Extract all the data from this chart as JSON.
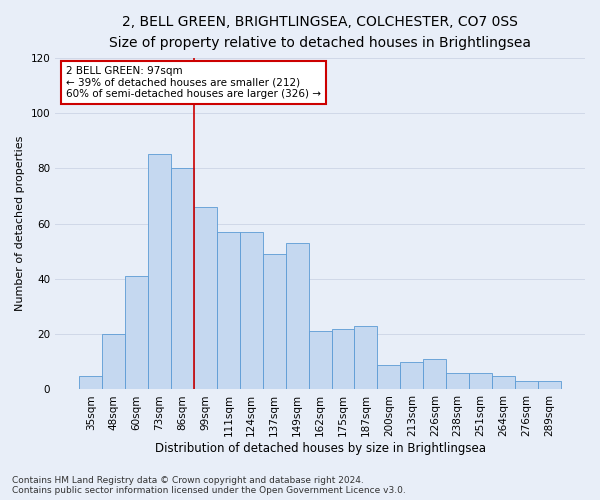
{
  "title1": "2, BELL GREEN, BRIGHTLINGSEA, COLCHESTER, CO7 0SS",
  "title2": "Size of property relative to detached houses in Brightlingsea",
  "xlabel": "Distribution of detached houses by size in Brightlingsea",
  "ylabel": "Number of detached properties",
  "footnote": "Contains HM Land Registry data © Crown copyright and database right 2024.\nContains public sector information licensed under the Open Government Licence v3.0.",
  "bar_labels": [
    "35sqm",
    "48sqm",
    "60sqm",
    "73sqm",
    "86sqm",
    "99sqm",
    "111sqm",
    "124sqm",
    "137sqm",
    "149sqm",
    "162sqm",
    "175sqm",
    "187sqm",
    "200sqm",
    "213sqm",
    "226sqm",
    "238sqm",
    "251sqm",
    "264sqm",
    "276sqm",
    "289sqm"
  ],
  "bar_values": [
    5,
    20,
    41,
    85,
    80,
    66,
    57,
    57,
    49,
    53,
    21,
    22,
    23,
    9,
    10,
    11,
    6,
    6,
    5,
    3,
    3
  ],
  "bar_color": "#c5d8f0",
  "bar_edge_color": "#5b9bd5",
  "annotation_text": "2 BELL GREEN: 97sqm\n← 39% of detached houses are smaller (212)\n60% of semi-detached houses are larger (326) →",
  "vline_color": "#cc0000",
  "vline_pos": 4.5,
  "ylim": [
    0,
    120
  ],
  "yticks": [
    0,
    20,
    40,
    60,
    80,
    100,
    120
  ],
  "grid_color": "#d0d8e8",
  "bg_color": "#e8eef8",
  "annotation_box_color": "#ffffff",
  "annotation_box_edge": "#cc0000",
  "title1_fontsize": 10,
  "title2_fontsize": 9,
  "xlabel_fontsize": 8.5,
  "ylabel_fontsize": 8,
  "tick_fontsize": 7.5,
  "annotation_fontsize": 7.5,
  "footnote_fontsize": 6.5
}
